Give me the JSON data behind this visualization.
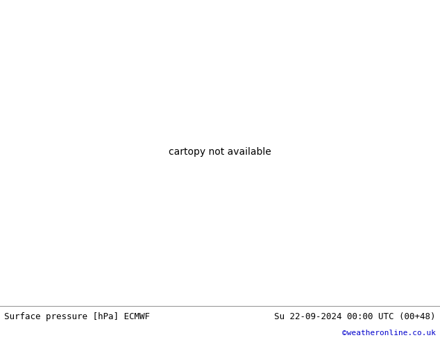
{
  "title_left": "Surface pressure [hPa] ECMWF",
  "title_right": "Su 22-09-2024 00:00 UTC (00+48)",
  "copyright": "©weatheronline.co.uk",
  "ocean_color": "#e8e8e8",
  "land_color": "#b8d8a0",
  "border_color": "#888888",
  "coast_color": "#888888",
  "fig_width": 6.34,
  "fig_height": 4.9,
  "dpi": 100,
  "bottom_bar_color": "#f0f0f0",
  "title_fontsize": 9,
  "copyright_color": "#0000cc",
  "copyright_fontsize": 8,
  "isobar_red_color": "#cc0000",
  "isobar_blue_color": "#0000cc",
  "isobar_black_color": "#000000",
  "label_fontsize": 7,
  "contour_linewidth": 0.9,
  "extent": [
    -45,
    50,
    25,
    75
  ]
}
